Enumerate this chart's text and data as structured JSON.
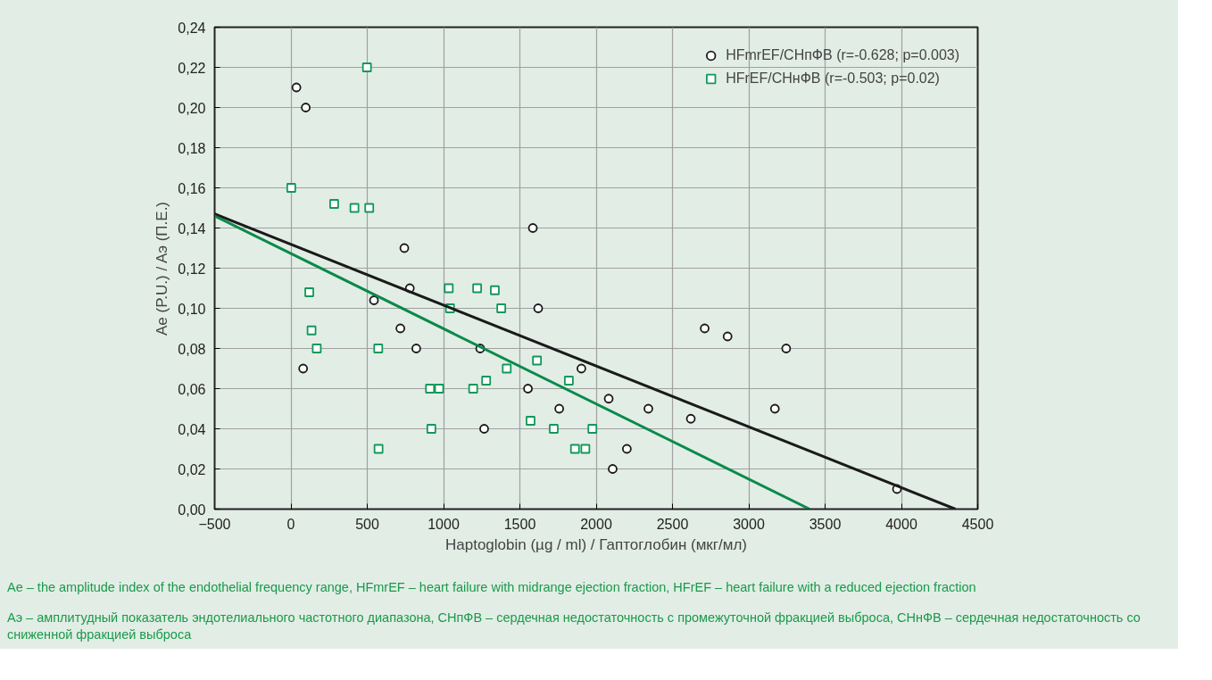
{
  "chart_data": {
    "type": "scatter",
    "xlabel": "Haptoglobin (µg / ml) / Гаптоглобин (мкг/мл)",
    "ylabel": "Ae (P.U.) / Aэ (П.Е.)",
    "xlim": [
      -500,
      4500
    ],
    "xticks": [
      -500,
      0,
      500,
      1000,
      1500,
      2000,
      2500,
      3000,
      3500,
      4000,
      4500
    ],
    "ylim": [
      0,
      0.24
    ],
    "yticks": [
      {
        "value": 0,
        "label": "0,00"
      },
      {
        "value": 0.02,
        "label": "0,02"
      },
      {
        "value": 0.04,
        "label": "0,04"
      },
      {
        "value": 0.06,
        "label": "0,06"
      },
      {
        "value": 0.08,
        "label": "0,08"
      },
      {
        "value": 0.1,
        "label": "0,10"
      },
      {
        "value": 0.12,
        "label": "0,12"
      },
      {
        "value": 0.14,
        "label": "0,14"
      },
      {
        "value": 0.16,
        "label": "0,16"
      },
      {
        "value": 0.18,
        "label": "0,18"
      },
      {
        "value": 0.2,
        "label": "0,20"
      },
      {
        "value": 0.22,
        "label": "0,22"
      },
      {
        "value": 0.24,
        "label": "0,24"
      }
    ],
    "grid": true,
    "legend": "top right",
    "series": [
      {
        "name": "HFmrEF/СНпФВ (r=-0.628; p=0.003)",
        "marker": "circle",
        "color": "#1a1a1a",
        "x": [
          36,
          97,
          1585,
          743,
          779,
          544,
          717,
          821,
          80,
          1240,
          1266,
          1553,
          1620,
          1758,
          1903,
          2082,
          2342,
          2108,
          2201,
          2620,
          2711,
          2861,
          3245,
          3171,
          3971
        ],
        "values": [
          0.21,
          0.2,
          0.14,
          0.13,
          0.11,
          0.104,
          0.09,
          0.08,
          0.07,
          0.08,
          0.04,
          0.06,
          0.1,
          0.05,
          0.07,
          0.055,
          0.05,
          0.02,
          0.03,
          0.045,
          0.09,
          0.086,
          0.08,
          0.05,
          0.01
        ]
      },
      {
        "name": "HFrEF/СНнФВ (r=-0.503; p=0.02)",
        "marker": "square",
        "color": "#12985a",
        "x": [
          498,
          2,
          283,
          416,
          513,
          120,
          135,
          169,
          572,
          574,
          1034,
          1042,
          1220,
          1336,
          1378,
          1414,
          1612,
          1279,
          1194,
          911,
          971,
          920,
          1570,
          1722,
          1821,
          1975,
          1861,
          1929
        ],
        "values": [
          0.22,
          0.16,
          0.152,
          0.15,
          0.15,
          0.108,
          0.089,
          0.08,
          0.08,
          0.03,
          0.11,
          0.1,
          0.11,
          0.109,
          0.1,
          0.07,
          0.074,
          0.064,
          0.06,
          0.06,
          0.06,
          0.04,
          0.044,
          0.04,
          0.064,
          0.04,
          0.03,
          0.03
        ]
      },
      {
        "type": "line",
        "color": "#1a1a1a",
        "x": [
          -500,
          4354
        ],
        "values": [
          0.147,
          0
        ]
      },
      {
        "type": "line",
        "color": "#0a8a4a",
        "x": [
          -500,
          3399
        ],
        "values": [
          0.146,
          0
        ]
      }
    ],
    "annotations": [
      "Ae – the amplitude index of the endothelial frequency range, HFmrEF – heart failure with midrange ejection fraction, HFrEF – heart failure with a reduced ejection fraction",
      "Aэ – амплитудный показатель эндотелиального частотного диапазона, СНпФВ – сердечная недостаточность с промежуточной фракцией выброса, СНнФВ – сердечная недостаточность со сниженной фракцией выброса"
    ]
  }
}
